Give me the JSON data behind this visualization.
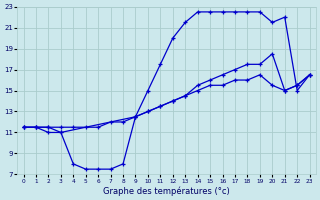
{
  "xlabel": "Graphe des températures (°c)",
  "xlim": [
    -0.5,
    23.5
  ],
  "ylim": [
    7,
    23
  ],
  "yticks": [
    7,
    9,
    11,
    13,
    15,
    17,
    19,
    21,
    23
  ],
  "xticks": [
    0,
    1,
    2,
    3,
    4,
    5,
    6,
    7,
    8,
    9,
    10,
    11,
    12,
    13,
    14,
    15,
    16,
    17,
    18,
    19,
    20,
    21,
    22,
    23
  ],
  "bg_color": "#cce8ec",
  "grid_color": "#aacccc",
  "line_color": "#0000cc",
  "series1_x": [
    0,
    1,
    2,
    3,
    4,
    5,
    6,
    7,
    8,
    9,
    10,
    11,
    12,
    13,
    14,
    15,
    16,
    17,
    18,
    19,
    20,
    21,
    22,
    23
  ],
  "series1_y": [
    11.5,
    11.5,
    11.0,
    11.0,
    8.0,
    7.5,
    7.5,
    7.5,
    8.0,
    12.5,
    13.0,
    13.5,
    14.0,
    14.5,
    15.0,
    15.5,
    15.5,
    16.0,
    16.0,
    16.5,
    15.5,
    15.0,
    15.5,
    16.5
  ],
  "series2_x": [
    0,
    1,
    2,
    3,
    4,
    5,
    6,
    7,
    8,
    9,
    10,
    11,
    12,
    13,
    14,
    15,
    16,
    17,
    18,
    19,
    20,
    21,
    22,
    23
  ],
  "series2_y": [
    11.5,
    11.5,
    11.5,
    11.5,
    11.5,
    11.5,
    11.5,
    12.0,
    12.0,
    12.5,
    13.0,
    13.5,
    14.0,
    14.5,
    15.5,
    16.0,
    16.5,
    17.0,
    17.5,
    17.5,
    18.5,
    15.0,
    15.5,
    16.5
  ],
  "series3_x": [
    0,
    1,
    2,
    3,
    9,
    10,
    11,
    12,
    13,
    14,
    15,
    16,
    17,
    18,
    19,
    20,
    21,
    22,
    23
  ],
  "series3_y": [
    11.5,
    11.5,
    11.5,
    11.0,
    12.5,
    15.0,
    17.5,
    20.0,
    21.5,
    22.5,
    22.5,
    22.5,
    22.5,
    22.5,
    22.5,
    21.5,
    22.0,
    15.0,
    16.5
  ]
}
